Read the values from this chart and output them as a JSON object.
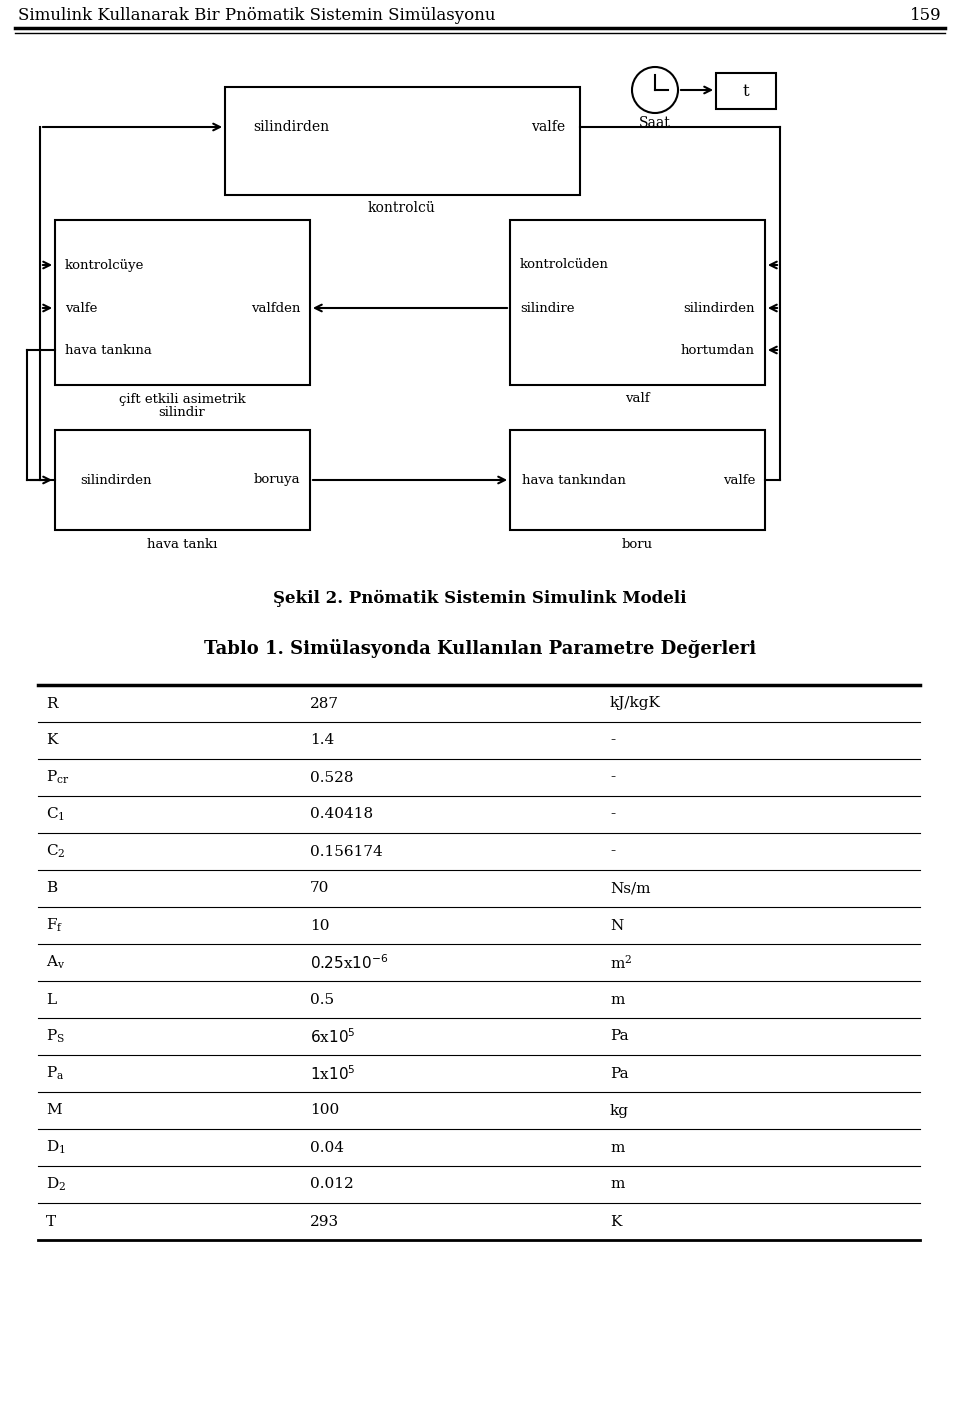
{
  "page_title": "Simulink Kullanarak Bir Pnömatik Sistemin Simülasyonu",
  "page_number": "159",
  "fig_caption": "Şekil 2. Pnömatik Sistemin Simulink Modeli",
  "table_title": "Tablo 1. Simülasyonda Kullanılan Parametre Değerleri",
  "table_rows": [
    [
      "R",
      "287",
      "kJ/kgK"
    ],
    [
      "K",
      "1.4",
      "-"
    ],
    [
      "P_cr",
      "0.528",
      "-"
    ],
    [
      "C_1",
      "0.40418",
      "-"
    ],
    [
      "C_2",
      "0.156174",
      "-"
    ],
    [
      "B",
      "70",
      "Ns/m"
    ],
    [
      "F_f",
      "10",
      "N"
    ],
    [
      "A_v",
      "0.25x10^{-6}",
      "m^2"
    ],
    [
      "L",
      "0.5",
      "m"
    ],
    [
      "P_S",
      "6x10^5",
      "Pa"
    ],
    [
      "P_a",
      "1x10^5",
      "Pa"
    ],
    [
      "M",
      "100",
      "kg"
    ],
    [
      "D_1",
      "0.04",
      "m"
    ],
    [
      "D_2",
      "0.012",
      "m"
    ],
    [
      "T",
      "293",
      "K"
    ]
  ],
  "bg_color": "#ffffff",
  "text_color": "#000000"
}
